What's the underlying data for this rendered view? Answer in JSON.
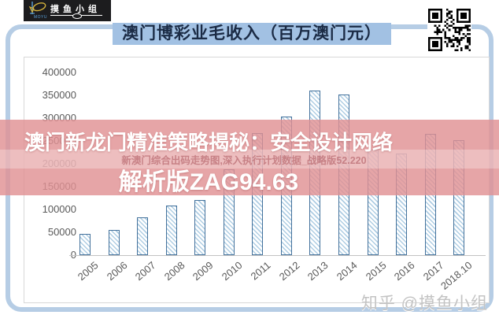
{
  "logo": {
    "brand": "摸鱼小组",
    "sub": "MOYU"
  },
  "title": {
    "text": "澳门博彩业毛收入（百万澳门元）",
    "highlight_bg": "#a2c1e3",
    "color": "#1b2b45"
  },
  "overlay": {
    "line1": "澳门新龙门精准策略揭秘：安全设计网络",
    "line2": "解析版ZAG94.63",
    "small_text": "新澳门综合出码走势图,深入执行计划数据_战略版52.220",
    "bg": "#e19194"
  },
  "watermark": {
    "text": "知乎 @摸鱼小组"
  },
  "icons": {
    "qr": "qr-code-icon",
    "fish": "fish-logo-icon"
  },
  "colors": {
    "card_border": "#b6cde5",
    "bar_outline": "#44729c",
    "bar_hatch": "#aecde3",
    "axis_text": "#595959"
  },
  "chart_data": {
    "type": "bar",
    "title": "澳门博彩业毛收入（百万澳门元）",
    "categories": [
      "2005",
      "2006",
      "2007",
      "2008",
      "2009",
      "2010",
      "2011",
      "2012",
      "2013",
      "2014",
      "2015",
      "2016",
      "2017",
      "2018.10"
    ],
    "values": [
      46000,
      56000,
      83000,
      109000,
      120000,
      188000,
      268000,
      304000,
      361000,
      352000,
      231000,
      223000,
      266000,
      251000
    ],
    "xlabel": "",
    "ylabel": "",
    "ylim": [
      0,
      400000
    ],
    "yticks": [
      0,
      50000,
      100000,
      150000,
      200000,
      250000,
      300000,
      350000,
      400000
    ],
    "grid": false,
    "legend": "none"
  }
}
